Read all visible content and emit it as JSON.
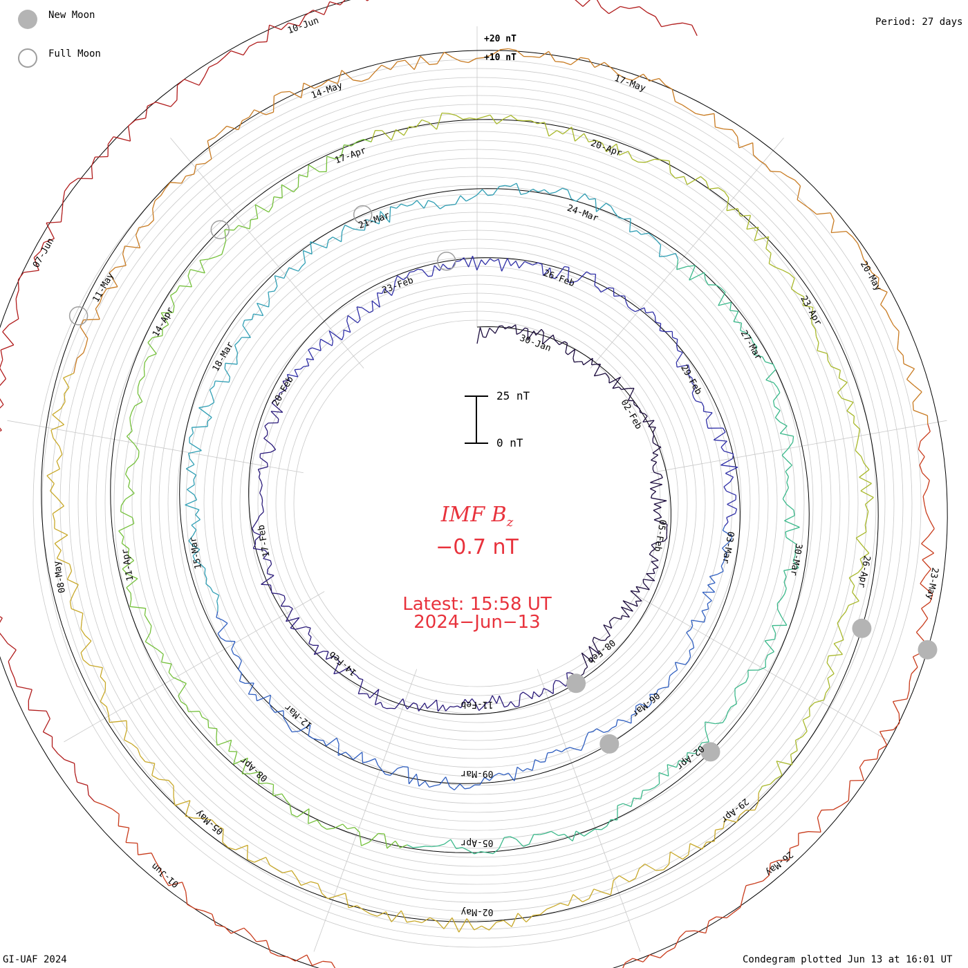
{
  "legend": {
    "new_moon_label": "New Moon",
    "full_moon_label": "Full Moon",
    "new_moon_color": "#b4b4b4",
    "full_moon_color": "#9e9e9e"
  },
  "period_label": "Period: 27 days",
  "center": {
    "title_main": "IMF B",
    "title_sub": "z",
    "value": "−0.7 nT",
    "latest_time": "Latest: 15:58 UT",
    "latest_date": "2024−Jun−13",
    "color": "#e8323c"
  },
  "scale_bar": {
    "top_label": "25 nT",
    "bottom_label": "0 nT"
  },
  "ring_scale_labels": [
    "+20 nT",
    "+10 nT"
  ],
  "footer": {
    "left": "GI-UAF 2024",
    "right": "Condegram plotted Jun 13 at 16:01 UT"
  },
  "chart_data": {
    "type": "condegram",
    "title": "IMF Bz",
    "unit": "nT",
    "period_days": 27,
    "latest_value": -0.7,
    "scale_labels": [
      "+20 nT",
      "+10 nT",
      "25 nT",
      "0 nT"
    ],
    "rings": [
      {
        "color": "#1a0a3c",
        "ticks": [
          "30-Jan",
          "02-Feb",
          "05-Feb",
          "08-Feb",
          "11-Feb",
          "14-Feb",
          "17-Feb",
          "20-Feb",
          "23-Feb"
        ]
      },
      {
        "color": "#2e2ea6",
        "ticks": [
          "26-Feb",
          "29-Feb",
          "03-Mar",
          "06-Mar",
          "09-Mar",
          "12-Mar",
          "15-Mar",
          "18-Mar",
          "21-Mar"
        ]
      },
      {
        "color": "#2e9eb4",
        "ticks": [
          "24-Mar",
          "27-Mar",
          "30-Mar",
          "02-Apr",
          "05-Apr",
          "08-Apr",
          "11-Apr",
          "14-Apr",
          "17-Apr"
        ]
      },
      {
        "color": "#74c03a",
        "ticks": [
          "20-Apr",
          "23-Apr",
          "26-Apr",
          "29-Apr",
          "02-May",
          "05-May",
          "08-May",
          "11-May",
          "14-May"
        ]
      },
      {
        "color": "#c8a828",
        "ticks": [
          "17-May",
          "20-May",
          "23-May",
          "26-May",
          "29-May",
          "01-Jun",
          "04",
          "07-Jun",
          "10-Jun"
        ]
      }
    ],
    "new_moon_dates": [
      "09-Feb",
      "10-Mar",
      "08-Apr",
      "08-May",
      "06-Jun"
    ],
    "full_moon_dates": [
      "24-Feb",
      "25-Mar",
      "23-Apr",
      "23-May"
    ]
  }
}
